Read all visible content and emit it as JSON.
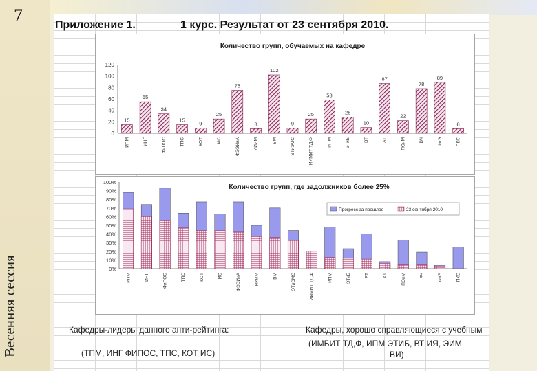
{
  "slide": {
    "number": "7",
    "side_title": "Весенняя сессия"
  },
  "header": {
    "title_left": "Приложение 1.",
    "title_right": "1 курс.  Результат от 23 сентября 2010."
  },
  "chart_data": [
    {
      "type": "bar",
      "title": "Количество групп, обучаемых на кафедре",
      "categories": [
        "ИПМ",
        "ИНГ",
        "ФиПОС",
        "ТПС",
        "КОТ",
        "ИС",
        "ФЭЭИиА",
        "ИИИМ",
        "ВМ",
        "ЭТиЭМС",
        "ИИМИТ ТД,Ф",
        "ИПМ",
        "ЭТиБ",
        "ВТ",
        "АТ",
        "ПОиМ",
        "ВЧ",
        "ФиЭ",
        "ПКС"
      ],
      "values": [
        15,
        55,
        34,
        15,
        9,
        25,
        75,
        8,
        102,
        9,
        25,
        58,
        28,
        10,
        87,
        22,
        78,
        89,
        8
      ],
      "ylim": [
        0,
        120
      ],
      "yticks": [
        0,
        20,
        40,
        60,
        80,
        100,
        120
      ],
      "color": "#8b2252"
    },
    {
      "type": "bar",
      "title": "Количество групп, где задолжников более 25%",
      "categories": [
        "ИПМ",
        "ИНГ",
        "ФиПОС",
        "ТПС",
        "КОТ",
        "ИС",
        "ФЭЭИиА",
        "ИИИМ",
        "ВМ",
        "ЭТиЭМС",
        "ИИМИТ ТД,Ф",
        "ИПМ",
        "ЭТиБ",
        "ВТ",
        "АТ",
        "ПОиМ",
        "ВЧ",
        "ФиЭ",
        "ПКС"
      ],
      "series": [
        {
          "name": "Прогресс за прошлое",
          "values": [
            88,
            74,
            93,
            64,
            77,
            63,
            77,
            50,
            70,
            44,
            0,
            48,
            23,
            40,
            8,
            33,
            19,
            4,
            25
          ]
        },
        {
          "name": "23 сентября 2010",
          "values": [
            69,
            60,
            56,
            47,
            44,
            44,
            43,
            37,
            36,
            33,
            20,
            13,
            12,
            11,
            6,
            5,
            5,
            3,
            0
          ]
        }
      ],
      "ylim": [
        0,
        100
      ],
      "yticks": [
        "0%",
        "10%",
        "20%",
        "30%",
        "40%",
        "50%",
        "60%",
        "70%",
        "80%",
        "90%",
        "100%"
      ],
      "legend_position": "top-right",
      "colors": [
        "#9999ee",
        "#a03060"
      ]
    }
  ],
  "footer": {
    "left_label": "Кафедры-лидеры данного анти-рейтинга:",
    "left_list": "(ТПМ, ИНГ ФИПОС, ТПС, КОТ ИС)",
    "right_label": "Кафедры, хорошо справляющиеся с учебным",
    "right_list_1": "(ИМБИТ ТД,Ф, ИПМ ЭТИБ, ВТ ИЯ, ЭИМ,",
    "right_list_2": "ВИ)"
  }
}
